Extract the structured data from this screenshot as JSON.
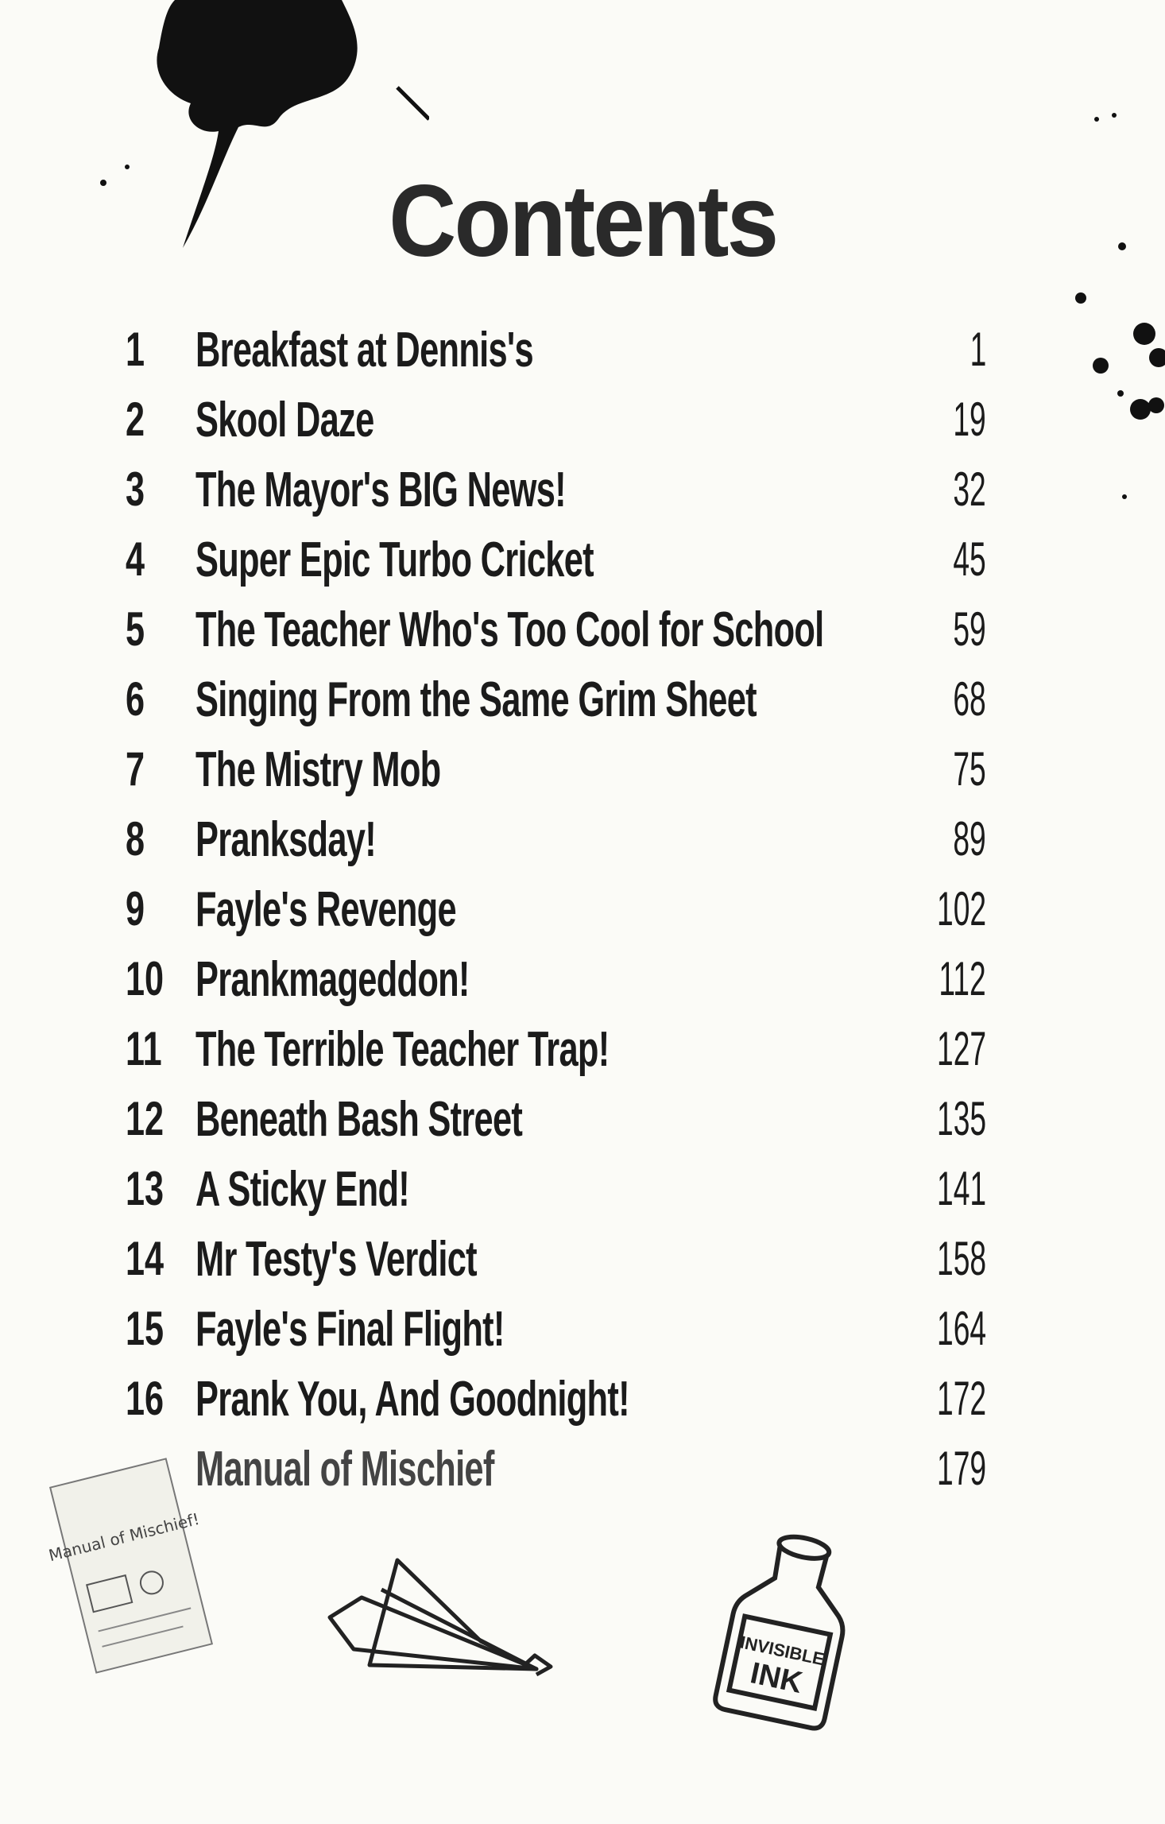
{
  "title": "Contents",
  "chapters": [
    {
      "number": "1",
      "title": "Breakfast at Dennis's",
      "page": "1"
    },
    {
      "number": "2",
      "title": "Skool Daze",
      "page": "19"
    },
    {
      "number": "3",
      "title": "The Mayor's BIG News!",
      "page": "32"
    },
    {
      "number": "4",
      "title": "Super Epic Turbo Cricket",
      "page": "45"
    },
    {
      "number": "5",
      "title": "The Teacher Who's Too Cool for School",
      "page": "59"
    },
    {
      "number": "6",
      "title": "Singing From the Same Grim Sheet",
      "page": "68"
    },
    {
      "number": "7",
      "title": "The Mistry Mob",
      "page": "75"
    },
    {
      "number": "8",
      "title": "Pranksday!",
      "page": "89"
    },
    {
      "number": "9",
      "title": "Fayle's Revenge",
      "page": "102"
    },
    {
      "number": "10",
      "title": "Prankmageddon!",
      "page": "112"
    },
    {
      "number": "11",
      "title": "The Terrible Teacher Trap!",
      "page": "127"
    },
    {
      "number": "12",
      "title": "Beneath Bash Street",
      "page": "135"
    },
    {
      "number": "13",
      "title": "A Sticky End!",
      "page": "141"
    },
    {
      "number": "14",
      "title": "Mr Testy's Verdict",
      "page": "158"
    },
    {
      "number": "15",
      "title": "Fayle's Final Flight!",
      "page": "164"
    },
    {
      "number": "16",
      "title": "Prank You, And Goodnight!",
      "page": "172"
    }
  ],
  "appendix": {
    "title": "Manual of Mischief",
    "page": "179"
  },
  "illustrations": {
    "leaflet_text": "Manual of Mischief!",
    "ink_bottle_label": "INVISIBLE INK"
  }
}
